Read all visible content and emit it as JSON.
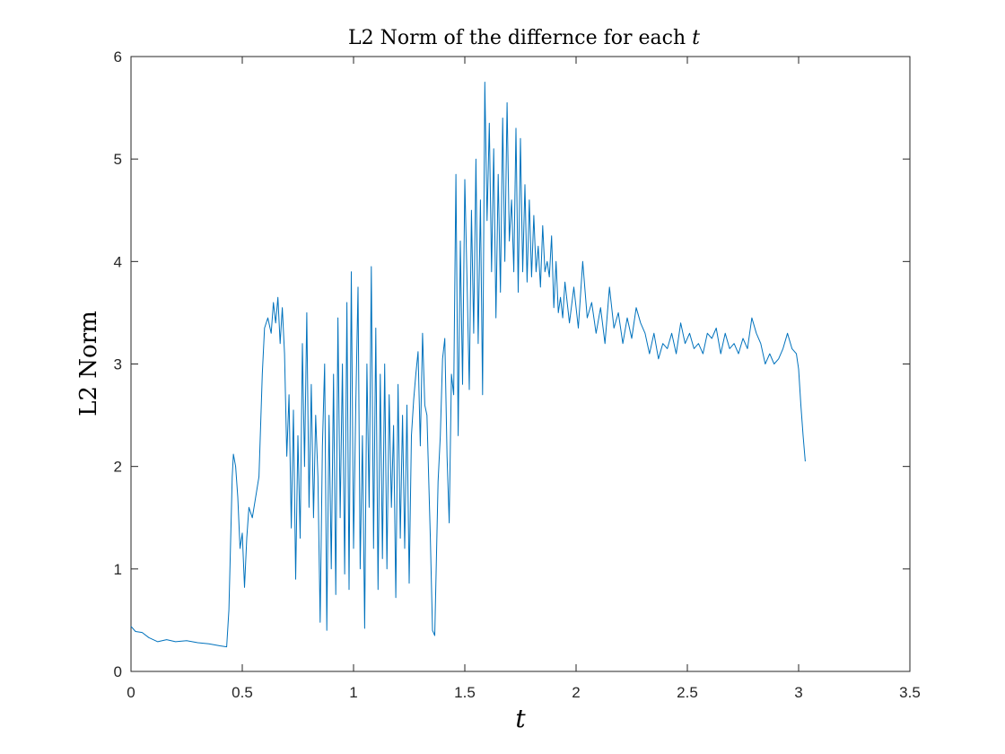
{
  "chart_data": {
    "type": "line",
    "title": "L2 Norm of the differnce for each",
    "title_var": "t",
    "xlabel": "t",
    "ylabel": "L2 Norm",
    "xlim": [
      0,
      3.5
    ],
    "ylim": [
      0,
      6
    ],
    "x_ticks": [
      "0",
      "0.5",
      "1",
      "1.5",
      "2",
      "2.5",
      "3",
      "3.5"
    ],
    "y_ticks": [
      "0",
      "1",
      "2",
      "3",
      "4",
      "5",
      "6"
    ],
    "grid": false,
    "legend": "none",
    "line_color": "#0072BD",
    "series": [
      {
        "x": [
          0,
          0.02,
          0.05,
          0.08,
          0.12,
          0.16,
          0.2,
          0.25,
          0.3,
          0.35,
          0.4,
          0.43,
          0.44,
          0.455,
          0.46,
          0.47,
          0.48,
          0.49,
          0.5,
          0.51,
          0.52,
          0.53,
          0.545,
          0.56,
          0.575,
          0.59,
          0.6,
          0.615,
          0.63,
          0.64,
          0.65,
          0.66,
          0.67,
          0.68,
          0.69,
          0.7,
          0.71,
          0.72,
          0.73,
          0.74,
          0.75,
          0.76,
          0.77,
          0.78,
          0.79,
          0.8,
          0.81,
          0.82,
          0.83,
          0.84,
          0.85,
          0.86,
          0.87,
          0.88,
          0.89,
          0.9,
          0.91,
          0.92,
          0.93,
          0.94,
          0.95,
          0.96,
          0.97,
          0.98,
          0.99,
          1.0,
          1.01,
          1.02,
          1.03,
          1.04,
          1.05,
          1.06,
          1.07,
          1.08,
          1.09,
          1.1,
          1.11,
          1.12,
          1.13,
          1.14,
          1.15,
          1.16,
          1.17,
          1.18,
          1.19,
          1.2,
          1.21,
          1.22,
          1.23,
          1.24,
          1.25,
          1.26,
          1.27,
          1.28,
          1.29,
          1.3,
          1.31,
          1.32,
          1.33,
          1.345,
          1.355,
          1.365,
          1.38,
          1.39,
          1.4,
          1.41,
          1.42,
          1.43,
          1.44,
          1.45,
          1.46,
          1.47,
          1.48,
          1.49,
          1.5,
          1.51,
          1.52,
          1.53,
          1.54,
          1.55,
          1.56,
          1.57,
          1.58,
          1.59,
          1.6,
          1.61,
          1.62,
          1.63,
          1.64,
          1.65,
          1.66,
          1.67,
          1.68,
          1.69,
          1.7,
          1.71,
          1.72,
          1.73,
          1.74,
          1.75,
          1.76,
          1.77,
          1.78,
          1.79,
          1.8,
          1.81,
          1.82,
          1.83,
          1.84,
          1.85,
          1.86,
          1.87,
          1.88,
          1.89,
          1.9,
          1.91,
          1.92,
          1.93,
          1.94,
          1.95,
          1.97,
          1.99,
          2.01,
          2.03,
          2.05,
          2.07,
          2.09,
          2.11,
          2.13,
          2.15,
          2.17,
          2.19,
          2.21,
          2.23,
          2.25,
          2.27,
          2.29,
          2.31,
          2.33,
          2.35,
          2.37,
          2.39,
          2.41,
          2.43,
          2.45,
          2.47,
          2.49,
          2.51,
          2.53,
          2.55,
          2.57,
          2.59,
          2.61,
          2.63,
          2.65,
          2.67,
          2.69,
          2.71,
          2.73,
          2.75,
          2.77,
          2.79,
          2.81,
          2.83,
          2.85,
          2.87,
          2.89,
          2.91,
          2.93,
          2.95,
          2.97,
          2.99,
          3.0,
          3.01,
          3.02,
          3.03
        ],
        "y": [
          0.44,
          0.39,
          0.38,
          0.33,
          0.29,
          0.31,
          0.29,
          0.3,
          0.28,
          0.27,
          0.25,
          0.24,
          0.6,
          1.9,
          2.12,
          2.0,
          1.7,
          1.2,
          1.35,
          0.82,
          1.3,
          1.6,
          1.5,
          1.7,
          1.9,
          2.9,
          3.35,
          3.45,
          3.3,
          3.6,
          3.4,
          3.65,
          3.2,
          3.55,
          3.1,
          2.1,
          2.7,
          1.4,
          2.55,
          0.9,
          2.3,
          1.3,
          3.2,
          2.0,
          3.5,
          1.6,
          2.8,
          1.5,
          2.5,
          1.9,
          0.48,
          2.2,
          3.0,
          0.4,
          2.5,
          1.0,
          2.9,
          0.75,
          3.45,
          1.5,
          3.0,
          0.95,
          3.6,
          0.8,
          3.9,
          1.2,
          2.6,
          3.75,
          1.0,
          2.3,
          0.42,
          3.0,
          1.6,
          3.95,
          1.2,
          3.35,
          0.8,
          2.9,
          1.1,
          3.0,
          1.0,
          2.7,
          1.6,
          2.4,
          0.72,
          2.8,
          1.3,
          2.5,
          1.2,
          2.6,
          0.86,
          2.3,
          2.65,
          2.9,
          3.12,
          2.2,
          3.3,
          2.6,
          2.5,
          1.3,
          0.4,
          0.35,
          1.85,
          2.3,
          3.05,
          3.25,
          2.1,
          1.45,
          2.9,
          2.7,
          4.85,
          2.3,
          4.2,
          2.8,
          4.8,
          3.8,
          2.75,
          4.5,
          3.3,
          5.0,
          3.2,
          4.6,
          2.7,
          5.75,
          4.4,
          5.35,
          3.9,
          5.1,
          3.45,
          4.85,
          3.7,
          5.4,
          4.0,
          5.55,
          4.2,
          4.6,
          3.9,
          5.3,
          3.7,
          5.2,
          3.9,
          4.75,
          3.8,
          4.6,
          3.85,
          4.45,
          3.9,
          4.15,
          3.75,
          4.35,
          3.9,
          4.0,
          3.85,
          4.25,
          3.55,
          4.0,
          3.5,
          3.65,
          3.45,
          3.8,
          3.4,
          3.75,
          3.35,
          4.0,
          3.45,
          3.6,
          3.3,
          3.55,
          3.2,
          3.75,
          3.35,
          3.5,
          3.2,
          3.45,
          3.25,
          3.55,
          3.4,
          3.3,
          3.1,
          3.3,
          3.05,
          3.2,
          3.15,
          3.3,
          3.1,
          3.4,
          3.2,
          3.3,
          3.15,
          3.2,
          3.1,
          3.3,
          3.25,
          3.35,
          3.1,
          3.3,
          3.15,
          3.2,
          3.1,
          3.25,
          3.15,
          3.45,
          3.3,
          3.2,
          3.0,
          3.1,
          3.0,
          3.05,
          3.15,
          3.3,
          3.15,
          3.1,
          2.95,
          2.6,
          2.3,
          2.05
        ]
      }
    ]
  }
}
